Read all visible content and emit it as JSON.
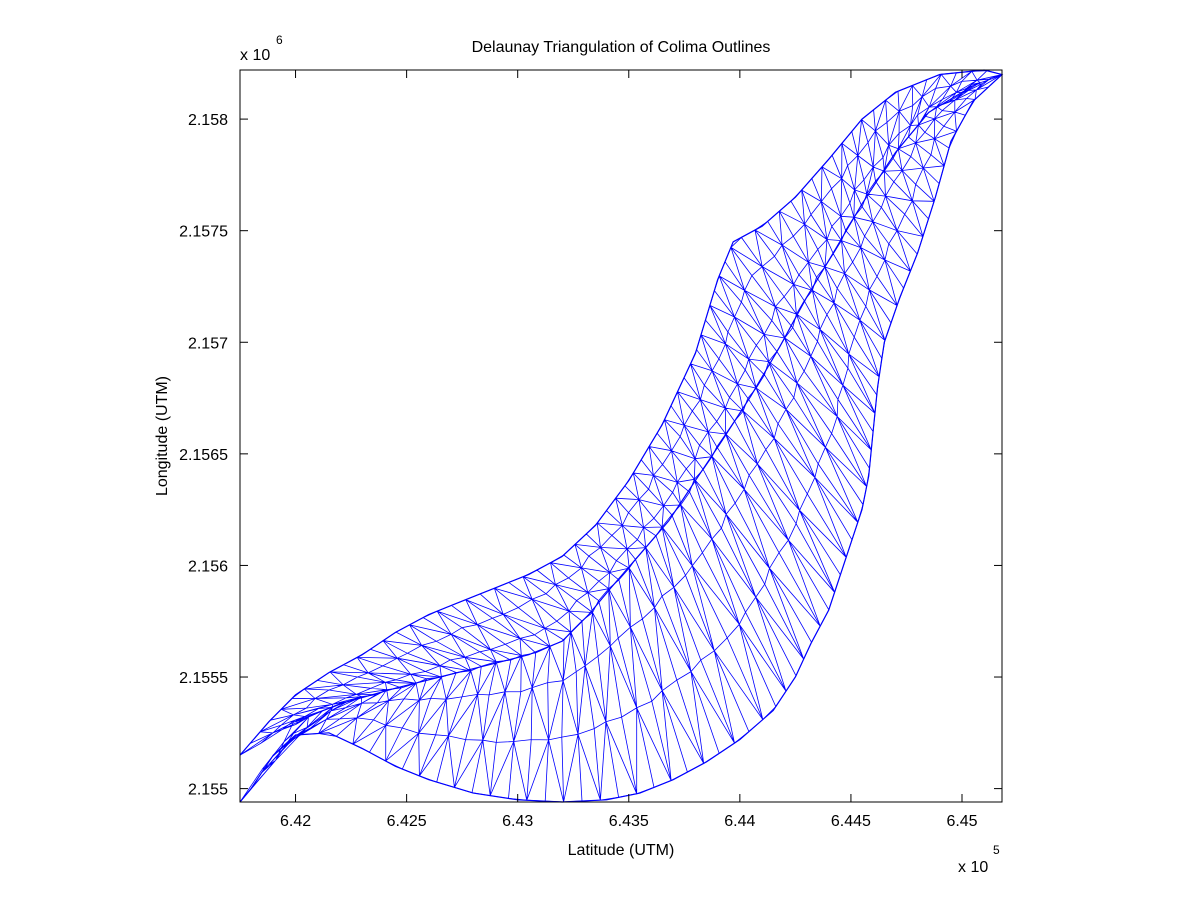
{
  "chart_data": {
    "type": "mesh",
    "title": "Delaunay Triangulation of Colima Outlines",
    "xlabel": "Latitude (UTM)",
    "ylabel": "Longitude (UTM)",
    "x_multiplier": {
      "base": "x 10",
      "exponent": "5"
    },
    "y_multiplier": {
      "base": "x 10",
      "exponent": "6"
    },
    "xlim": [
      6.4175,
      6.4518
    ],
    "ylim": [
      2.15494,
      2.15822
    ],
    "x_ticks": [
      6.42,
      6.425,
      6.43,
      6.435,
      6.44,
      6.445,
      6.45
    ],
    "x_tick_labels": [
      "6.42",
      "6.425",
      "6.43",
      "6.435",
      "6.44",
      "6.445",
      "6.45"
    ],
    "y_ticks": [
      2.155,
      2.1555,
      2.156,
      2.1565,
      2.157,
      2.1575,
      2.158
    ],
    "y_tick_labels": [
      "2.155",
      "2.1555",
      "2.156",
      "2.1565",
      "2.157",
      "2.1575",
      "2.158"
    ],
    "line_color": "#0000ff",
    "grid": false,
    "mesh": {
      "outer_boundary": [
        [
          6.4175,
          2.15515
        ],
        [
          6.4188,
          2.1553
        ],
        [
          6.42,
          2.15542
        ],
        [
          6.4215,
          2.15552
        ],
        [
          6.423,
          2.1556
        ],
        [
          6.4245,
          2.1557
        ],
        [
          6.426,
          2.15578
        ],
        [
          6.4275,
          2.15584
        ],
        [
          6.429,
          2.1559
        ],
        [
          6.4305,
          2.15596
        ],
        [
          6.432,
          2.15604
        ],
        [
          6.4335,
          2.15618
        ],
        [
          6.435,
          2.15638
        ],
        [
          6.4365,
          2.15663
        ],
        [
          6.438,
          2.15695
        ],
        [
          6.439,
          2.15728
        ],
        [
          6.4397,
          2.15745
        ],
        [
          6.441,
          2.15752
        ],
        [
          6.4425,
          2.15765
        ],
        [
          6.444,
          2.15782
        ],
        [
          6.4455,
          2.158
        ],
        [
          6.447,
          2.15812
        ],
        [
          6.449,
          2.1582
        ],
        [
          6.451,
          2.15822
        ],
        [
          6.4518,
          2.1582
        ],
        [
          6.4505,
          2.15808
        ],
        [
          6.4495,
          2.1579
        ],
        [
          6.4488,
          2.15765
        ],
        [
          6.448,
          2.1574
        ],
        [
          6.4472,
          2.1572
        ],
        [
          6.4465,
          2.157
        ],
        [
          6.4462,
          2.1568
        ],
        [
          6.446,
          2.1566
        ],
        [
          6.4458,
          2.1564
        ],
        [
          6.4455,
          2.15625
        ],
        [
          6.445,
          2.1561
        ],
        [
          6.4445,
          2.15595
        ],
        [
          6.444,
          2.1558
        ],
        [
          6.4432,
          2.15565
        ],
        [
          6.4425,
          2.1555
        ],
        [
          6.4415,
          2.15535
        ],
        [
          6.44,
          2.15522
        ],
        [
          6.4385,
          2.15512
        ],
        [
          6.437,
          2.15504
        ],
        [
          6.4355,
          2.15498
        ],
        [
          6.434,
          2.15495
        ],
        [
          6.432,
          2.15494
        ],
        [
          6.43,
          2.15495
        ],
        [
          6.428,
          2.15498
        ],
        [
          6.426,
          2.15504
        ],
        [
          6.4245,
          2.1551
        ],
        [
          6.423,
          2.15518
        ],
        [
          6.4215,
          2.15525
        ],
        [
          6.42,
          2.15524
        ],
        [
          6.419,
          2.15515
        ],
        [
          6.418,
          2.155
        ],
        [
          6.4175,
          2.15494
        ]
      ],
      "inner_curve": [
        [
          6.42,
          2.1553
        ],
        [
          6.422,
          2.15538
        ],
        [
          6.4245,
          2.15545
        ],
        [
          6.4265,
          2.1555
        ],
        [
          6.4285,
          2.15555
        ],
        [
          6.4305,
          2.1556
        ],
        [
          6.432,
          2.15566
        ],
        [
          6.4332,
          2.15578
        ],
        [
          6.4342,
          2.1559
        ],
        [
          6.4355,
          2.15605
        ],
        [
          6.4368,
          2.1562
        ],
        [
          6.438,
          2.15638
        ],
        [
          6.4392,
          2.15656
        ],
        [
          6.4405,
          2.15676
        ],
        [
          6.4418,
          2.15698
        ],
        [
          6.443,
          2.1572
        ],
        [
          6.4442,
          2.1574
        ],
        [
          6.4455,
          2.15762
        ],
        [
          6.447,
          2.15785
        ],
        [
          6.4485,
          2.15803
        ],
        [
          6.4505,
          2.15815
        ]
      ]
    }
  }
}
